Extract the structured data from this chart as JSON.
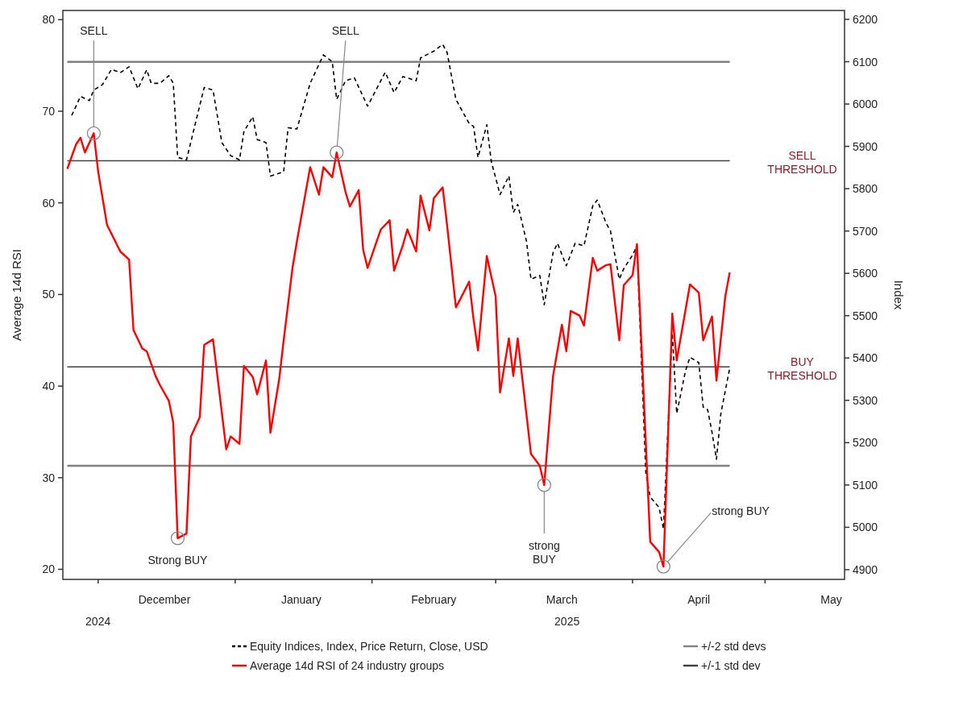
{
  "chart_data": {
    "type": "line",
    "ylabel": "Average 14d RSI",
    "y2label": "Index",
    "xlim": [
      "2024-11-23",
      "2025-05-19"
    ],
    "ylim": [
      18.9,
      81.0
    ],
    "y2lim": [
      4877,
      6221
    ],
    "xticks": [
      {
        "value": "2024-12-01",
        "label": null
      },
      {
        "value": "2024-12-16",
        "label": "December"
      },
      {
        "value": "2025-01-01",
        "label": null
      },
      {
        "value": "2025-01-16",
        "label": "January"
      },
      {
        "value": "2025-02-01",
        "label": null
      },
      {
        "value": "2025-02-15",
        "label": "February"
      },
      {
        "value": "2025-03-01",
        "label": null
      },
      {
        "value": "2025-03-16",
        "label": "March"
      },
      {
        "value": "2025-04-01",
        "label": null
      },
      {
        "value": "2025-04-16",
        "label": "April"
      },
      {
        "value": "2025-05-01",
        "label": null
      },
      {
        "value": "2025-05-16",
        "label": "May"
      }
    ],
    "yticks": [
      20,
      30,
      40,
      50,
      60,
      70,
      80
    ],
    "y2ticks": [
      4900,
      5000,
      5100,
      5200,
      5300,
      5400,
      5500,
      5600,
      5700,
      5800,
      5900,
      6000,
      6100,
      6200
    ],
    "series": [
      {
        "name": "Equity Indices, Index, Price Return, Close, USD",
        "color": "#000000",
        "axis": "y2",
        "line_style": "dashed",
        "x": [
          "2024-11-25",
          "2024-11-27",
          "2024-11-29",
          "2024-11-30",
          "2024-12-02",
          "2024-12-04",
          "2024-12-06",
          "2024-12-08",
          "2024-12-10",
          "2024-12-12",
          "2024-12-13",
          "2024-12-15",
          "2024-12-17",
          "2024-12-18",
          "2024-12-19",
          "2024-12-21",
          "2024-12-23",
          "2024-12-25",
          "2024-12-27",
          "2024-12-29",
          "2024-12-31",
          "2025-01-02",
          "2025-01-03",
          "2025-01-05",
          "2025-01-06",
          "2025-01-08",
          "2025-01-09",
          "2025-01-12",
          "2025-01-13",
          "2025-01-15",
          "2025-01-18",
          "2025-01-21",
          "2025-01-23",
          "2025-01-24",
          "2025-01-26",
          "2025-01-28",
          "2025-01-31",
          "2025-02-04",
          "2025-02-06",
          "2025-02-08",
          "2025-02-11",
          "2025-02-12",
          "2025-02-15",
          "2025-02-17",
          "2025-02-18",
          "2025-02-20",
          "2025-02-22",
          "2025-02-23",
          "2025-02-24",
          "2025-02-25",
          "2025-02-27",
          "2025-02-28",
          "2025-03-02",
          "2025-03-04",
          "2025-03-05",
          "2025-03-06",
          "2025-03-08",
          "2025-03-09",
          "2025-03-11",
          "2025-03-12",
          "2025-03-14",
          "2025-03-15",
          "2025-03-17",
          "2025-03-19",
          "2025-03-21",
          "2025-03-23",
          "2025-03-24",
          "2025-03-26",
          "2025-03-27",
          "2025-03-29",
          "2025-03-30",
          "2025-04-01",
          "2025-04-02",
          "2025-04-03",
          "2025-04-04",
          "2025-04-05",
          "2025-04-07",
          "2025-04-08",
          "2025-04-10",
          "2025-04-11",
          "2025-04-13",
          "2025-04-14",
          "2025-04-16",
          "2025-04-17",
          "2025-04-18",
          "2025-04-19",
          "2025-04-20",
          "2025-04-21",
          "2025-04-23"
        ],
        "values": [
          5973,
          6018,
          6008,
          6033,
          6046,
          6082,
          6074,
          6088,
          6036,
          6081,
          6049,
          6049,
          6067,
          6049,
          5874,
          5868,
          5954,
          6039,
          6033,
          5909,
          5878,
          5868,
          5935,
          5970,
          5916,
          5909,
          5830,
          5840,
          5944,
          5941,
          6049,
          6116,
          6100,
          6011,
          6055,
          6062,
          5995,
          6075,
          6027,
          6065,
          6055,
          6109,
          6125,
          6141,
          6122,
          6011,
          5973,
          5954,
          5947,
          5874,
          5951,
          5865,
          5786,
          5830,
          5744,
          5763,
          5675,
          5586,
          5595,
          5526,
          5649,
          5671,
          5618,
          5671,
          5665,
          5760,
          5773,
          5719,
          5700,
          5586,
          5611,
          5643,
          5665,
          5395,
          5129,
          5072,
          5047,
          4996,
          5459,
          5269,
          5370,
          5402,
          5389,
          5284,
          5278,
          5224,
          5161,
          5269,
          5376
        ]
      },
      {
        "name": "Average 14d RSI of 24 industry groups",
        "color": "#ff0000",
        "line_style": "solid",
        "x": [
          "2024-11-24",
          "2024-11-26",
          "2024-11-27",
          "2024-11-28",
          "2024-11-30",
          "2024-12-01",
          "2024-12-03",
          "2024-12-06",
          "2024-12-08",
          "2024-12-09",
          "2024-12-11",
          "2024-12-12",
          "2024-12-14",
          "2024-12-15",
          "2024-12-17",
          "2024-12-18",
          "2024-12-19",
          "2024-12-21",
          "2024-12-22",
          "2024-12-24",
          "2024-12-25",
          "2024-12-27",
          "2024-12-30",
          "2024-12-31",
          "2025-01-02",
          "2025-01-03",
          "2025-01-05",
          "2025-01-06",
          "2025-01-08",
          "2025-01-09",
          "2025-01-11",
          "2025-01-12",
          "2025-01-14",
          "2025-01-15",
          "2025-01-18",
          "2025-01-20",
          "2025-01-21",
          "2025-01-23",
          "2025-01-24",
          "2025-01-26",
          "2025-01-27",
          "2025-01-29",
          "2025-01-30",
          "2025-01-31",
          "2025-02-03",
          "2025-02-05",
          "2025-02-06",
          "2025-02-08",
          "2025-02-09",
          "2025-02-11",
          "2025-02-12",
          "2025-02-14",
          "2025-02-15",
          "2025-02-17",
          "2025-02-18",
          "2025-02-20",
          "2025-02-21",
          "2025-02-23",
          "2025-02-24",
          "2025-02-25",
          "2025-02-27",
          "2025-03-01",
          "2025-03-02",
          "2025-03-04",
          "2025-03-05",
          "2025-03-06",
          "2025-03-09",
          "2025-03-11",
          "2025-03-12",
          "2025-03-14",
          "2025-03-16",
          "2025-03-17",
          "2025-03-18",
          "2025-03-20",
          "2025-03-21",
          "2025-03-23",
          "2025-03-24",
          "2025-03-26",
          "2025-03-27",
          "2025-03-29",
          "2025-03-30",
          "2025-04-01",
          "2025-04-02",
          "2025-04-05",
          "2025-04-07",
          "2025-04-08",
          "2025-04-10",
          "2025-04-11",
          "2025-04-14",
          "2025-04-16",
          "2025-04-17",
          "2025-04-19",
          "2025-04-20",
          "2025-04-22",
          "2025-04-23"
        ],
        "values": [
          63.7,
          66.4,
          67.1,
          65.5,
          67.6,
          63.4,
          57.6,
          54.7,
          53.8,
          46.1,
          44.1,
          43.8,
          41.1,
          40.1,
          38.4,
          36.0,
          23.4,
          23.9,
          34.5,
          36.6,
          44.5,
          45.1,
          33.1,
          34.5,
          33.7,
          42.2,
          41.0,
          39.1,
          42.8,
          34.9,
          40.8,
          45.0,
          52.9,
          55.8,
          63.9,
          60.9,
          63.9,
          62.8,
          65.5,
          61.2,
          59.6,
          61.4,
          54.9,
          52.9,
          57.1,
          58.1,
          52.6,
          55.4,
          57.1,
          54.7,
          60.8,
          57.0,
          60.5,
          61.7,
          57.6,
          48.6,
          49.5,
          51.4,
          47.3,
          43.9,
          54.2,
          49.8,
          39.3,
          45.2,
          41.1,
          45.2,
          32.6,
          31.3,
          29.2,
          41.1,
          46.7,
          43.8,
          48.2,
          47.7,
          46.6,
          54.0,
          52.6,
          53.2,
          53.3,
          45.0,
          51.0,
          52.1,
          55.5,
          23.0,
          21.9,
          20.3,
          47.9,
          42.8,
          51.1,
          50.2,
          45.0,
          47.6,
          40.6,
          49.8,
          52.4
        ]
      }
    ],
    "ref_lines": [
      {
        "axis": "y",
        "value": 75.4,
        "label": "+/-2 std devs",
        "color": "#808080"
      },
      {
        "axis": "y",
        "value": 64.6,
        "label": "+/-1 std dev",
        "color": "#404040"
      },
      {
        "axis": "y",
        "value": 42.1,
        "color": "#404040"
      },
      {
        "axis": "y",
        "value": 31.3,
        "color": "#808080"
      }
    ],
    "annotations": [
      {
        "text": "SELL",
        "x": "2024-11-30",
        "y": 67.6
      },
      {
        "text": "SELL",
        "x": "2025-01-24",
        "y": 65.5
      },
      {
        "text": "Strong BUY",
        "x": "2024-12-19",
        "y": 23.4
      },
      {
        "text": "strong\nBUY",
        "x": "2025-03-12",
        "y": 29.2
      },
      {
        "text": "strong BUY",
        "x": "2025-04-08",
        "y": 20.3
      },
      "SELL\nTHRESHOLD",
      "BUY\nTHRESHOLD",
      "2024",
      "2025"
    ],
    "legend": "bottom",
    "grid": false
  }
}
